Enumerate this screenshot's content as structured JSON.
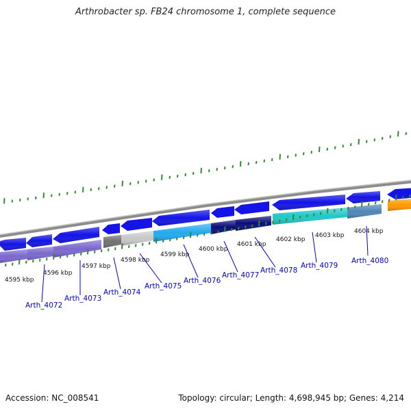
{
  "title": "Arthrobacter sp. FB24 chromosome 1, complete sequence",
  "footer": {
    "accession": "Accession: NC_008541",
    "summary": "Topology: circular; Length: 4,698,945 bp; Genes: 4,214"
  },
  "ticks": [
    "4595 kbp",
    "4596 kbp",
    "4597 kbp",
    "4598 kbp",
    "4599 kbp",
    "4600 kbp",
    "4601 kbp",
    "4602 kbp",
    "4603 kbp",
    "4604 kbp"
  ],
  "genes": [
    {
      "id": "Arth_4072",
      "color": "#7b68ce"
    },
    {
      "id": "Arth_4073",
      "color": "#7b68ce"
    },
    {
      "id": "Arth_4074",
      "color": "#707070"
    },
    {
      "id": "Arth_4075",
      "color": "#c8c8c8"
    },
    {
      "id": "Arth_4076",
      "color": "#22aaee"
    },
    {
      "id": "Arth_4077",
      "color": "#0b0b7a"
    },
    {
      "id": "Arth_4078",
      "color": "#0b0b7a"
    },
    {
      "id": "Arth_4079",
      "color": "#20c8c8"
    },
    {
      "id": "Arth_4080",
      "color": "#4f86b8"
    }
  ],
  "colors": {
    "gene_arrow": "#1414e6",
    "gene_arrow_dark": "#0000a0",
    "tick_green": "#2e8b2e",
    "backbone": "#8c8c8c",
    "label_blue": "#0000cc",
    "orange_segment": "#ff9a00"
  }
}
